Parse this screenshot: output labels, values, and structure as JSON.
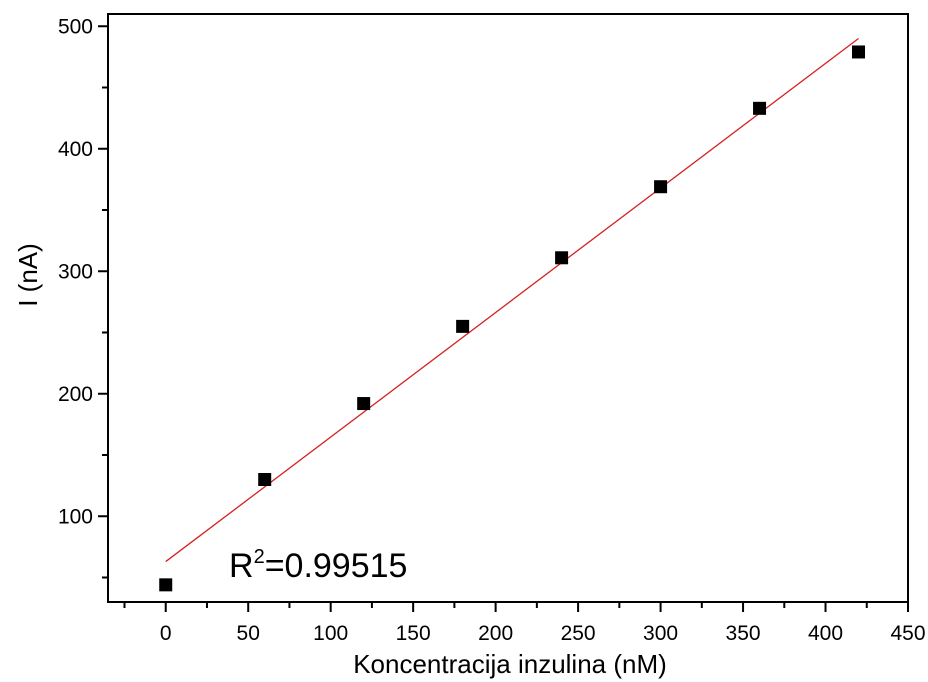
{
  "chart_data": {
    "type": "scatter",
    "title": "",
    "xlabel": "Koncentracija inzulina (nM)",
    "ylabel": "I (nA)",
    "xlim": [
      -35,
      450
    ],
    "ylim": [
      30,
      510
    ],
    "x_ticks": [
      0,
      50,
      100,
      150,
      200,
      250,
      300,
      350,
      400,
      450
    ],
    "y_ticks": [
      100,
      200,
      300,
      400,
      500
    ],
    "grid": false,
    "series": [
      {
        "x": [
          0,
          60,
          120,
          180,
          240,
          300,
          360,
          420
        ],
        "y": [
          44,
          130,
          192,
          255,
          311,
          369,
          433,
          479
        ],
        "marker": "square",
        "color": "#000000"
      }
    ],
    "fit_line": {
      "x": [
        0,
        420
      ],
      "y": [
        63,
        490
      ],
      "color": "#d62020"
    },
    "annotation": {
      "base": "R",
      "superscript": "2",
      "value": "=0.99515"
    }
  }
}
